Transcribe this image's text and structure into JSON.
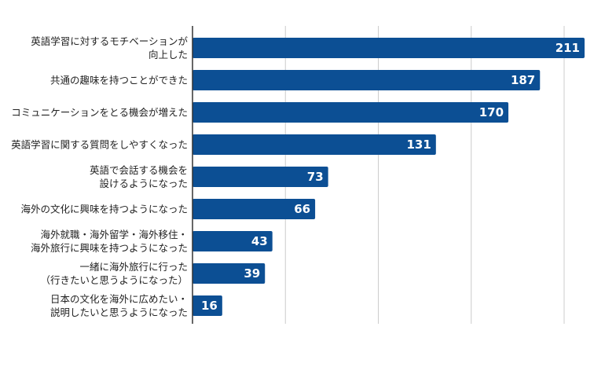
{
  "chart_data": {
    "type": "bar",
    "orientation": "horizontal",
    "title": "",
    "xlabel": "",
    "ylabel": "",
    "categories": [
      [
        "英語学習に対するモチベーションが",
        "向上した"
      ],
      [
        "共通の趣味を持つことができた"
      ],
      [
        "コミュニケーションをとる機会が増えた"
      ],
      [
        "英語学習に関する質問をしやすくなった"
      ],
      [
        "英語で会話する機会を",
        "設けるようになった"
      ],
      [
        "海外の文化に興味を持つようになった"
      ],
      [
        "海外就職・海外留学・海外移住・",
        "海外旅行に興味を持つようになった"
      ],
      [
        "一緒に海外旅行に行った",
        "（行きたいと思うようになった）"
      ],
      [
        "日本の文化を海外に広めたい・",
        "説明したいと思うようになった"
      ]
    ],
    "values": [
      211,
      187,
      170,
      131,
      73,
      66,
      43,
      39,
      16
    ],
    "xlim": [
      0,
      220
    ],
    "grid": true,
    "bar_color": "#0c4f94",
    "value_label_color": "#ffffff",
    "grid_color": "#cccccc",
    "axis_color": "#333333"
  }
}
